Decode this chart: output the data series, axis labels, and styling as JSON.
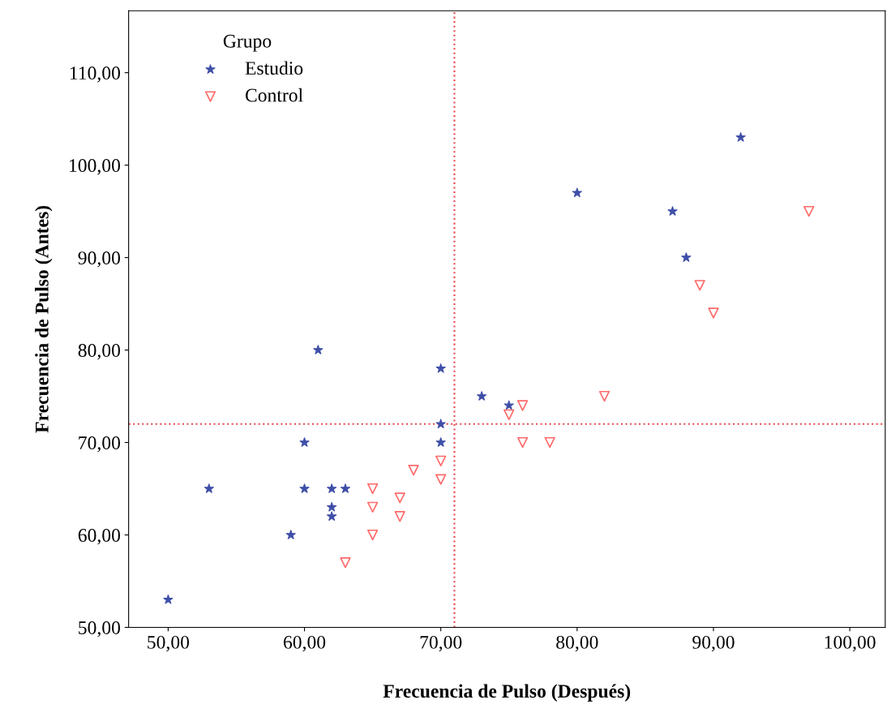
{
  "chart_data": {
    "type": "scatter",
    "xlabel": "Frecuencia de Pulso (Después)",
    "ylabel": "Frecuencia de Pulso (Antes)",
    "legend_title": "Grupo",
    "legend": "top left",
    "grid": false,
    "series": [
      {
        "name": "Estudio",
        "color": "#3f4fa8",
        "marker": "star",
        "x": [
          50,
          53,
          59,
          60,
          60,
          61,
          62,
          62,
          62,
          63,
          70,
          70,
          70,
          73,
          75,
          80,
          87,
          88,
          92
        ],
        "values": [
          53,
          65,
          60,
          70,
          65,
          80,
          65,
          63,
          62,
          65,
          78,
          72,
          70,
          75,
          74,
          97,
          95,
          90,
          103
        ]
      },
      {
        "name": "Control",
        "color": "#ff6a6a",
        "marker": "triangle",
        "x": [
          63,
          65,
          65,
          65,
          67,
          67,
          68,
          70,
          70,
          75,
          76,
          76,
          78,
          82,
          89,
          90,
          97
        ],
        "values": [
          57,
          65,
          63,
          60,
          64,
          62,
          67,
          68,
          66,
          73,
          74,
          70,
          70,
          75,
          87,
          84,
          95
        ]
      }
    ],
    "ref_lines": [
      {
        "axis": "x",
        "value": 71,
        "color": "#e8474c",
        "line_style": "dotted"
      },
      {
        "axis": "y",
        "value": 72,
        "color": "#e8474c",
        "line_style": "dotted"
      }
    ],
    "xlim": [
      47.1,
      102.6
    ],
    "ylim": [
      50,
      116.7
    ],
    "xticks": [
      {
        "value": 50,
        "label": "50,00"
      },
      {
        "value": 60,
        "label": "60,00"
      },
      {
        "value": 70,
        "label": "70,00"
      },
      {
        "value": 80,
        "label": "80,00"
      },
      {
        "value": 90,
        "label": "90,00"
      },
      {
        "value": 100,
        "label": "100,00"
      }
    ],
    "yticks": [
      {
        "value": 50,
        "label": "50,00"
      },
      {
        "value": 60,
        "label": "60,00"
      },
      {
        "value": 70,
        "label": "70,00"
      },
      {
        "value": 80,
        "label": "80,00"
      },
      {
        "value": 90,
        "label": "90,00"
      },
      {
        "value": 100,
        "label": "100,00"
      },
      {
        "value": 110,
        "label": "110,00"
      }
    ]
  }
}
